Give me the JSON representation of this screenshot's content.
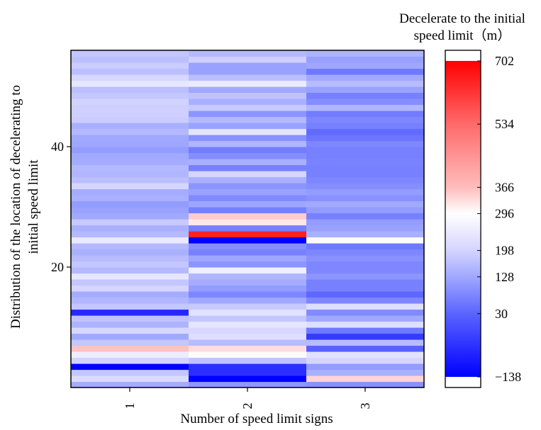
{
  "chart_data": {
    "type": "heatmap",
    "xlabel": "Number of speed limit signs",
    "ylabel_lines": [
      "Distribution of the location of decelerating to",
      "initial speed limit"
    ],
    "x_categories": [
      "1",
      "2",
      "3"
    ],
    "y_ticks": [
      20,
      40
    ],
    "y_range": [
      0,
      56
    ],
    "colorbar": {
      "title_lines": [
        "Decelerate to the initial",
        "speed limit（m）"
      ],
      "min": -138,
      "max": 702,
      "ticks": [
        702,
        534,
        366,
        296,
        198,
        128,
        30,
        -138
      ],
      "stops": [
        {
          "v": -138,
          "c": "#0000ff"
        },
        {
          "v": 30,
          "c": "#5a64ff"
        },
        {
          "v": 128,
          "c": "#a0a8ff"
        },
        {
          "v": 198,
          "c": "#d4d4ff"
        },
        {
          "v": 296,
          "c": "#ffffff"
        },
        {
          "v": 366,
          "c": "#ffbcbc"
        },
        {
          "v": 534,
          "c": "#ff6a6a"
        },
        {
          "v": 702,
          "c": "#ff0000"
        }
      ]
    },
    "rows": 56,
    "values": [
      [
        135,
        105,
        95
      ],
      [
        215,
        -138,
        340
      ],
      [
        175,
        -60,
        140
      ],
      [
        -138,
        -60,
        110
      ],
      [
        195,
        170,
        200
      ],
      [
        255,
        300,
        230
      ],
      [
        360,
        330,
        25
      ],
      [
        175,
        160,
        160
      ],
      [
        130,
        220,
        -40
      ],
      [
        205,
        205,
        60
      ],
      [
        145,
        240,
        220
      ],
      [
        170,
        175,
        130
      ],
      [
        -70,
        230,
        85
      ],
      [
        175,
        180,
        220
      ],
      [
        150,
        130,
        80
      ],
      [
        135,
        80,
        35
      ],
      [
        200,
        110,
        70
      ],
      [
        175,
        135,
        70
      ],
      [
        240,
        150,
        100
      ],
      [
        155,
        260,
        80
      ],
      [
        175,
        100,
        80
      ],
      [
        160,
        125,
        95
      ],
      [
        140,
        70,
        80
      ],
      [
        155,
        90,
        60
      ],
      [
        245,
        -138,
        300
      ],
      [
        155,
        650,
        140
      ],
      [
        140,
        70,
        120
      ],
      [
        180,
        320,
        110
      ],
      [
        130,
        350,
        70
      ],
      [
        120,
        70,
        110
      ],
      [
        110,
        125,
        130
      ],
      [
        140,
        85,
        95
      ],
      [
        135,
        120,
        110
      ],
      [
        200,
        100,
        90
      ],
      [
        165,
        140,
        80
      ],
      [
        150,
        200,
        70
      ],
      [
        155,
        70,
        70
      ],
      [
        135,
        140,
        75
      ],
      [
        130,
        90,
        70
      ],
      [
        110,
        65,
        70
      ],
      [
        125,
        150,
        80
      ],
      [
        130,
        95,
        55
      ],
      [
        155,
        235,
        40
      ],
      [
        140,
        120,
        70
      ],
      [
        185,
        155,
        80
      ],
      [
        190,
        100,
        65
      ],
      [
        190,
        180,
        150
      ],
      [
        195,
        140,
        90
      ],
      [
        175,
        170,
        70
      ],
      [
        165,
        130,
        120
      ],
      [
        240,
        250,
        160
      ],
      [
        205,
        165,
        130
      ],
      [
        165,
        120,
        60
      ],
      [
        185,
        120,
        125
      ],
      [
        165,
        190,
        115
      ],
      [
        175,
        155,
        145
      ]
    ]
  }
}
